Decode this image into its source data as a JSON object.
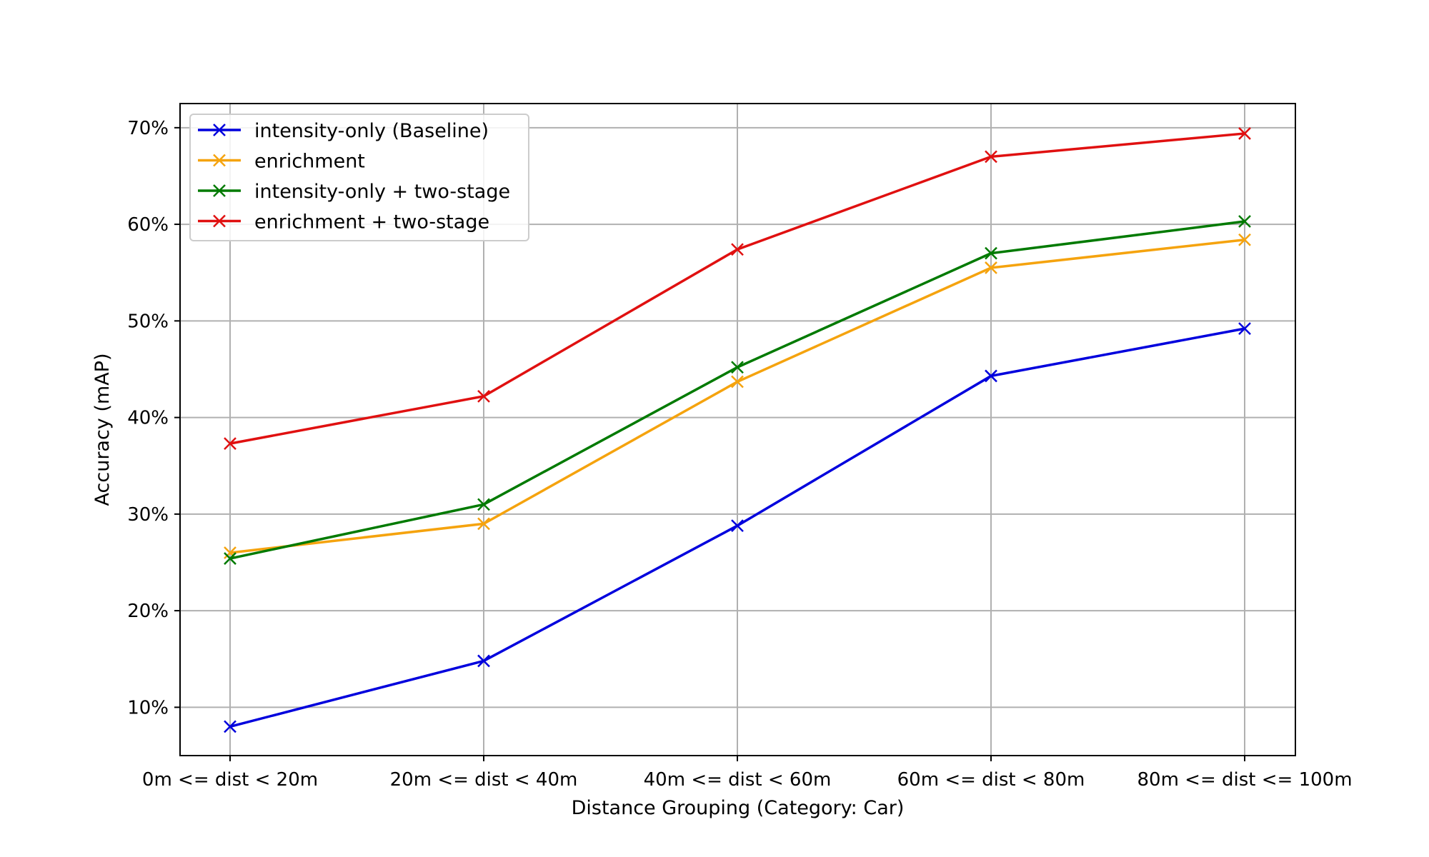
{
  "chart_data": {
    "type": "line",
    "title": "",
    "xlabel": "Distance Grouping (Category: Car)",
    "ylabel": "Accuracy (mAP)",
    "categories": [
      "0m <= dist < 20m",
      "20m <= dist < 40m",
      "40m <= dist < 60m",
      "60m <= dist < 80m",
      "80m <= dist <= 100m"
    ],
    "yticks": [
      10,
      20,
      30,
      40,
      50,
      60,
      70
    ],
    "ytick_labels": [
      "10%",
      "20%",
      "30%",
      "40%",
      "50%",
      "60%",
      "70%"
    ],
    "ylim": [
      5.0,
      72.5
    ],
    "grid": true,
    "legend_position": "top-left",
    "marker": "x",
    "series": [
      {
        "name": "intensity-only (Baseline)",
        "color": "#0000dd",
        "values": [
          8.0,
          14.8,
          28.8,
          44.3,
          49.2
        ]
      },
      {
        "name": "enrichment",
        "color": "#f5a30e",
        "values": [
          26.0,
          29.0,
          43.7,
          55.5,
          58.4
        ]
      },
      {
        "name": "intensity-only + two-stage",
        "color": "#007a00",
        "values": [
          25.4,
          31.0,
          45.2,
          57.0,
          60.3
        ]
      },
      {
        "name": "enrichment + two-stage",
        "color": "#e01010",
        "values": [
          37.3,
          42.2,
          57.4,
          67.0,
          69.4
        ]
      }
    ]
  }
}
